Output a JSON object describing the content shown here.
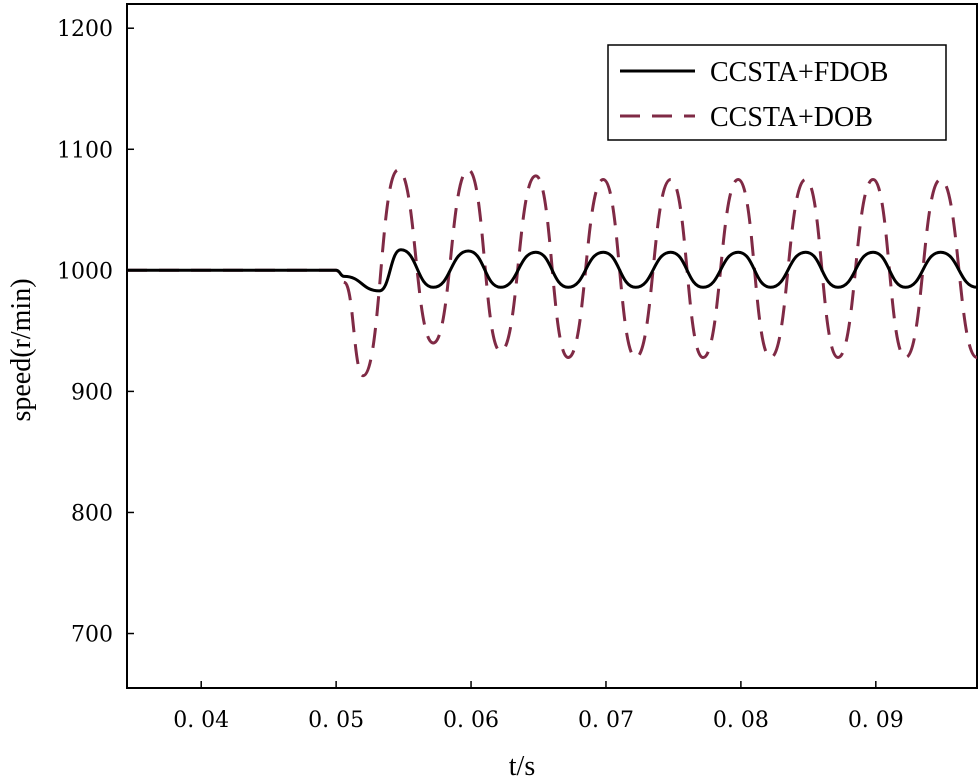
{
  "chart_data": {
    "type": "line",
    "title": "",
    "xlabel": "t/s",
    "ylabel": "speed(r/min)",
    "xlim": [
      0.0345,
      0.0975
    ],
    "ylim": [
      655,
      1220
    ],
    "xticks": [
      0.04,
      0.05,
      0.06,
      0.07,
      0.08,
      0.09
    ],
    "xtick_labels": [
      "0. 04",
      "0. 05",
      "0. 06",
      "0. 07",
      "0. 08",
      "0. 09"
    ],
    "yticks": [
      700,
      800,
      900,
      1000,
      1100,
      1200
    ],
    "ytick_labels": [
      "700",
      "800",
      "900",
      "1000",
      "1100",
      "1200"
    ],
    "grid": false,
    "legend_position": "top-right",
    "series": [
      {
        "name": "CCSTA+FDOB",
        "style": "solid",
        "color": "#000000",
        "x": [
          0.0345,
          0.05,
          0.0506,
          0.0532,
          0.0548,
          0.0572,
          0.0598,
          0.0622,
          0.0648,
          0.0672,
          0.0698,
          0.0722,
          0.0748,
          0.0772,
          0.0798,
          0.0822,
          0.0848,
          0.0872,
          0.0898,
          0.0922,
          0.0948,
          0.0975
        ],
        "y": [
          1000,
          1000,
          995,
          983,
          1017,
          986,
          1016,
          986,
          1015,
          986,
          1015,
          986,
          1015,
          986,
          1015,
          986,
          1015,
          986,
          1015,
          986,
          1015,
          986
        ]
      },
      {
        "name": "CCSTA+DOB",
        "style": "dashed",
        "color": "#7f2a45",
        "x": [
          0.0345,
          0.05,
          0.0506,
          0.052,
          0.0546,
          0.0572,
          0.0598,
          0.0622,
          0.0648,
          0.0672,
          0.0698,
          0.0722,
          0.0748,
          0.0772,
          0.0798,
          0.0822,
          0.0848,
          0.0872,
          0.0898,
          0.0922,
          0.0948,
          0.0975
        ],
        "y": [
          1000,
          1000,
          990,
          913,
          1083,
          940,
          1083,
          933,
          1078,
          928,
          1075,
          928,
          1075,
          928,
          1075,
          928,
          1075,
          928,
          1075,
          928,
          1075,
          928
        ]
      }
    ]
  }
}
